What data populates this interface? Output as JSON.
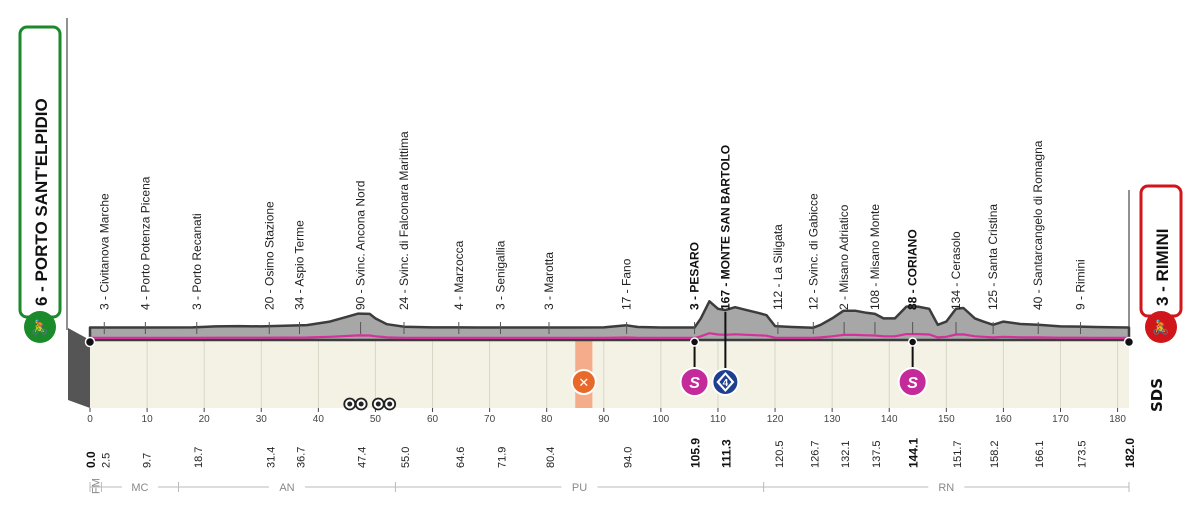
{
  "start": {
    "name": "6 - PORTO SANT'ELPIDIO",
    "color": "#1b8a2a"
  },
  "finish": {
    "name": "3 - RIMINI",
    "color": "#d0161b"
  },
  "colors": {
    "profile": "#a7a7a7",
    "profile_edge": "#3c3c3c",
    "ground": "#f3f2e4",
    "route": "#d6309b",
    "feed": "#f4a07a",
    "sprint": "#c42a9a",
    "gpm": "#1f3f8f"
  },
  "logo": "SDS",
  "regions": [
    "FM",
    "MC",
    "AN",
    "PU",
    "RN"
  ],
  "chart_data": {
    "type": "area",
    "xlim": [
      0,
      182
    ],
    "x_ticks": [
      0,
      10,
      20,
      30,
      40,
      50,
      60,
      70,
      80,
      90,
      100,
      110,
      120,
      130,
      140,
      150,
      160,
      170,
      180
    ],
    "profile": [
      [
        0,
        3
      ],
      [
        3,
        3
      ],
      [
        10,
        3
      ],
      [
        18,
        4
      ],
      [
        22,
        10
      ],
      [
        26,
        12
      ],
      [
        30,
        10
      ],
      [
        34,
        14
      ],
      [
        38,
        18
      ],
      [
        42,
        40
      ],
      [
        45,
        70
      ],
      [
        47,
        90
      ],
      [
        49,
        88
      ],
      [
        50,
        60
      ],
      [
        52,
        24
      ],
      [
        55,
        8
      ],
      [
        60,
        4
      ],
      [
        64.6,
        4
      ],
      [
        68,
        3
      ],
      [
        72,
        3
      ],
      [
        78,
        3
      ],
      [
        84,
        3
      ],
      [
        90,
        4
      ],
      [
        94,
        17
      ],
      [
        96,
        6
      ],
      [
        100,
        3
      ],
      [
        104,
        3
      ],
      [
        105.9,
        3
      ],
      [
        107,
        60
      ],
      [
        108.5,
        167
      ],
      [
        110,
        120
      ],
      [
        111.3,
        112
      ],
      [
        113,
        130
      ],
      [
        115,
        112
      ],
      [
        117,
        95
      ],
      [
        118.5,
        80
      ],
      [
        120,
        12
      ],
      [
        123,
        6
      ],
      [
        126.7,
        2
      ],
      [
        128,
        20
      ],
      [
        130,
        60
      ],
      [
        132,
        108
      ],
      [
        134,
        108
      ],
      [
        136,
        95
      ],
      [
        137.5,
        88
      ],
      [
        139,
        60
      ],
      [
        141,
        60
      ],
      [
        143,
        134
      ],
      [
        145,
        134
      ],
      [
        147,
        120
      ],
      [
        148.5,
        20
      ],
      [
        150,
        40
      ],
      [
        151.7,
        120
      ],
      [
        153,
        125
      ],
      [
        155,
        60
      ],
      [
        156.5,
        40
      ],
      [
        158.2,
        20
      ],
      [
        160,
        40
      ],
      [
        163,
        25
      ],
      [
        166.1,
        20
      ],
      [
        170,
        10
      ],
      [
        173.5,
        9
      ],
      [
        176,
        6
      ],
      [
        180,
        4
      ],
      [
        182,
        3
      ]
    ],
    "distances": [
      0.0,
      2.5,
      9.7,
      18.7,
      31.4,
      36.7,
      47.4,
      55.0,
      64.6,
      71.9,
      80.4,
      94.0,
      105.9,
      111.3,
      120.5,
      126.7,
      132.1,
      137.5,
      144.1,
      151.7,
      158.2,
      166.1,
      173.5,
      182.0
    ],
    "distance_labels": [
      "0.0",
      "2.5",
      "9.7",
      "18.7",
      "31.4",
      "36.7",
      "47.4",
      "55.0",
      "64.6",
      "71.9",
      "80.4",
      "94.0",
      "105.9",
      "111.3",
      "120.5",
      "126.7",
      "132.1",
      "137.5",
      "144.1",
      "151.7",
      "158.2",
      "166.1",
      "173.5",
      "182.0"
    ],
    "bold_distances": [
      "0.0",
      "105.9",
      "111.3",
      "144.1",
      "182.0"
    ],
    "waypoints": [
      {
        "km": 2.5,
        "label": "3 - Civitanova Marche",
        "bold": false
      },
      {
        "km": 9.7,
        "label": "4 - Porto Potenza Picena",
        "bold": false
      },
      {
        "km": 18.7,
        "label": "3 - Porto Recanati",
        "bold": false
      },
      {
        "km": 31.4,
        "label": "20 - Osimo Stazione",
        "bold": false
      },
      {
        "km": 36.7,
        "label": "34 - Aspio Terme",
        "bold": false
      },
      {
        "km": 47.4,
        "label": "90 - Svinc. Ancona Nord",
        "bold": false
      },
      {
        "km": 55.0,
        "label": "24 - Svinc. di Falconara Marittima",
        "bold": false
      },
      {
        "km": 64.6,
        "label": "4 - Marzocca",
        "bold": false
      },
      {
        "km": 71.9,
        "label": "3 - Senigallia",
        "bold": false
      },
      {
        "km": 80.4,
        "label": "3 - Marotta",
        "bold": false
      },
      {
        "km": 94.0,
        "label": "17 - Fano",
        "bold": false
      },
      {
        "km": 105.9,
        "label": "3 - PESARO",
        "bold": true
      },
      {
        "km": 111.3,
        "label": "167 - MONTE SAN BARTOLO",
        "bold": true
      },
      {
        "km": 120.5,
        "label": "112 - La Siligata",
        "bold": false
      },
      {
        "km": 126.7,
        "label": "12 - Svinc. di Gabicce",
        "bold": false
      },
      {
        "km": 132.1,
        "label": "2 - Misano Adriatico",
        "bold": false
      },
      {
        "km": 137.5,
        "label": "108 - Misano Monte",
        "bold": false
      },
      {
        "km": 144.1,
        "label": "88 - CORIANO",
        "bold": true
      },
      {
        "km": 151.7,
        "label": "134 - Cerasolo",
        "bold": false
      },
      {
        "km": 158.2,
        "label": "125 - Santa Cristina",
        "bold": false
      },
      {
        "km": 166.1,
        "label": "40 - Santarcangelo di Romagna",
        "bold": false
      },
      {
        "km": 173.5,
        "label": "9 - Rimini",
        "bold": false
      }
    ],
    "sprints": [
      {
        "km": 105.9,
        "label": "S"
      },
      {
        "km": 144.1,
        "label": "S"
      }
    ],
    "gpm": [
      {
        "km": 111.3,
        "label": "4"
      }
    ],
    "feed_zone": [
      85,
      88
    ],
    "tunnels": [
      45.5,
      47.5,
      50.5,
      52.5
    ]
  }
}
